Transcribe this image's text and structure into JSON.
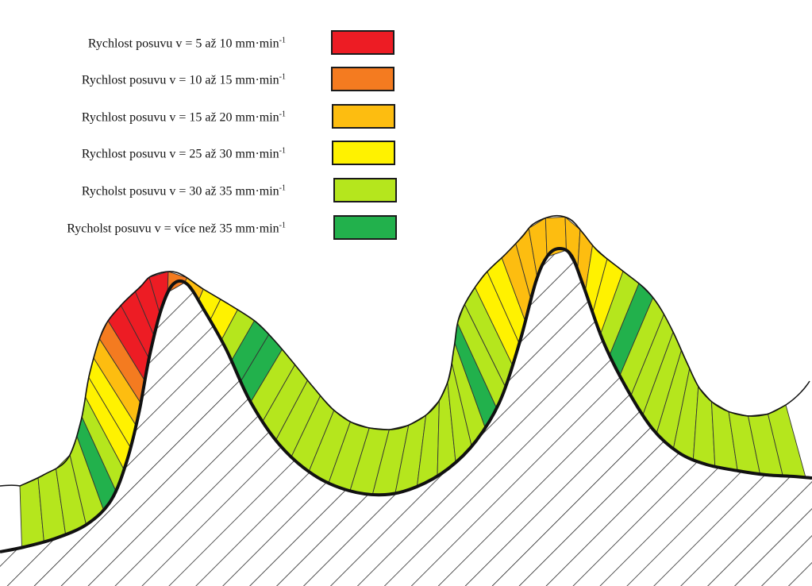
{
  "legend": {
    "items": [
      {
        "prefix": "Rychlost posuvu v = ",
        "range": "5 až 10",
        "unit": "mm·min",
        "exponent": "-1",
        "color": "#ed1c24"
      },
      {
        "prefix": "Rychlost posuvu v = ",
        "range": "10 až 15",
        "unit": "mm·min",
        "exponent": "-1",
        "color": "#f47b20"
      },
      {
        "prefix": "Rychlost posuvu v = ",
        "range": "15 až 20",
        "unit": "mm·min",
        "exponent": "-1",
        "color": "#fdbd10"
      },
      {
        "prefix": "Rychlost posuvu v = ",
        "range": "25 až 30",
        "unit": "mm·min",
        "exponent": "-1",
        "color": "#fff200"
      },
      {
        "prefix": "Rycholst posuvu v = ",
        "range": "30 až 35",
        "unit": "mm·min",
        "exponent": "-1",
        "color": "#b5e61d"
      },
      {
        "prefix": "Rycholst posuvu v = ",
        "range": "více než 35",
        "unit": "mm·min",
        "exponent": "-1",
        "color": "#22b14c"
      }
    ]
  },
  "band_sequence": [
    4,
    4,
    4,
    4,
    5,
    4,
    3,
    3,
    2,
    1,
    0,
    0,
    0,
    0,
    1,
    2,
    3,
    3,
    4,
    5,
    5,
    4,
    4,
    4,
    4,
    4,
    4,
    4,
    4,
    4,
    4,
    4,
    4,
    4,
    5,
    4,
    4,
    3,
    3,
    2,
    2,
    2,
    2,
    2,
    2,
    3,
    3,
    4,
    5,
    4,
    4,
    4,
    4,
    4,
    4,
    4,
    4,
    4,
    4
  ],
  "colors": {
    "outline": "#111111",
    "hatch": "#1a1a1a",
    "segment_border": "#333333"
  }
}
